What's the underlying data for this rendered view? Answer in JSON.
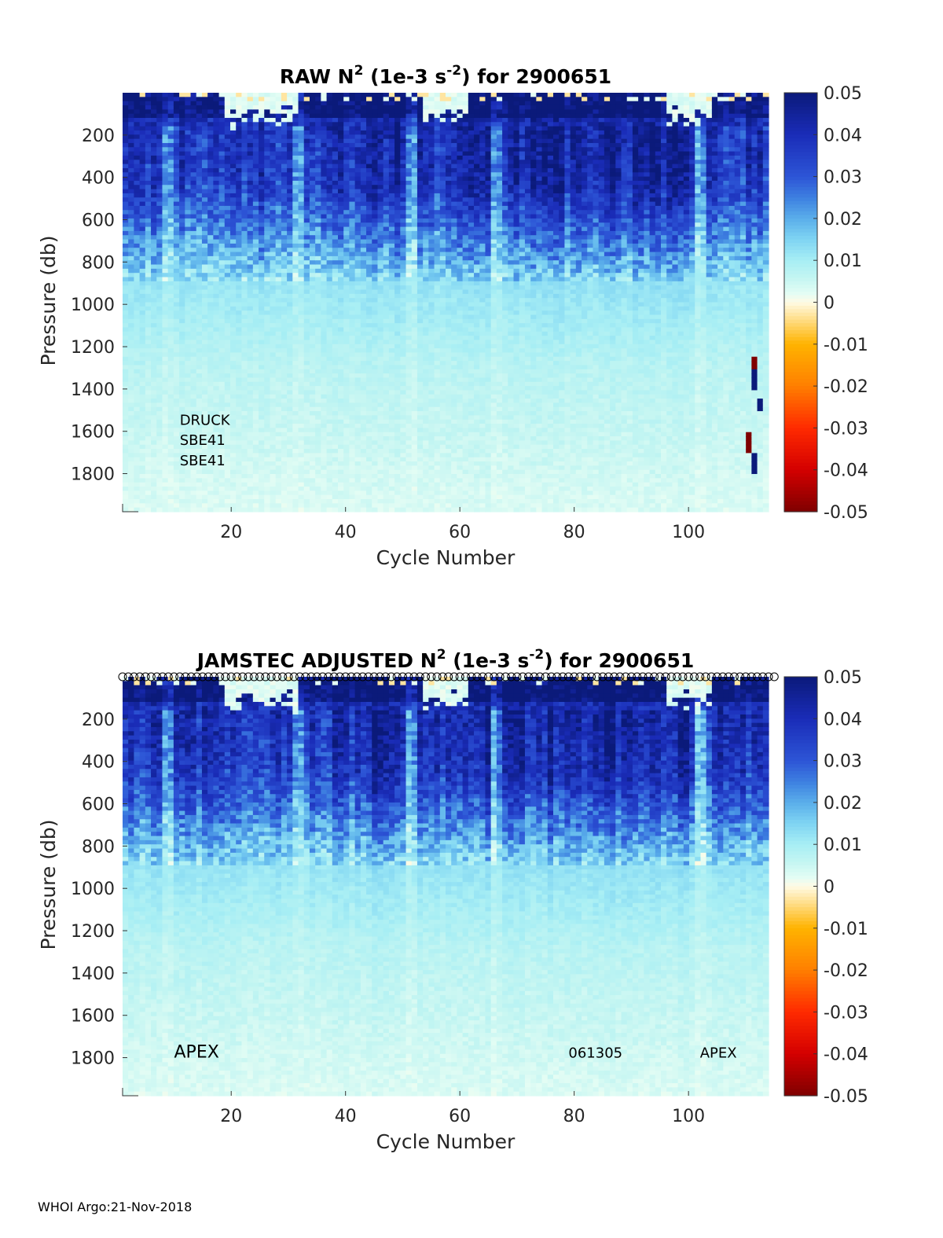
{
  "colormap": {
    "stops": [
      {
        "v": -0.05,
        "c": "#7f0000"
      },
      {
        "v": -0.04,
        "c": "#d40000"
      },
      {
        "v": -0.03,
        "c": "#ff2a00"
      },
      {
        "v": -0.02,
        "c": "#ff7f00"
      },
      {
        "v": -0.01,
        "c": "#ffb300"
      },
      {
        "v": 0.0,
        "c": "#fffbe6"
      },
      {
        "v": 0.002,
        "c": "#e4fdf4"
      },
      {
        "v": 0.006,
        "c": "#c2f5f2"
      },
      {
        "v": 0.01,
        "c": "#a7eef4"
      },
      {
        "v": 0.015,
        "c": "#7fd4f3"
      },
      {
        "v": 0.02,
        "c": "#5aaeea"
      },
      {
        "v": 0.025,
        "c": "#3d7fe0"
      },
      {
        "v": 0.03,
        "c": "#2d55d6"
      },
      {
        "v": 0.04,
        "c": "#1a2cb8"
      },
      {
        "v": 0.05,
        "c": "#0b1a7a"
      }
    ]
  },
  "chart_data": [
    {
      "type": "heatmap",
      "title_prefix": "RAW N",
      "title_sup1": "2",
      "title_mid": " (1e-3 s",
      "title_sup2": "-2",
      "title_suffix": ") for 2900651",
      "xlabel": "Cycle Number",
      "ylabel": "Pressure (db)",
      "xlim": [
        1,
        114
      ],
      "ylim": [
        1980,
        0
      ],
      "xticks": [
        20,
        40,
        60,
        80,
        100
      ],
      "xticklabels": [
        "20",
        "40",
        "60",
        "80",
        "100"
      ],
      "yticks": [
        200,
        400,
        600,
        800,
        1000,
        1200,
        1400,
        1600,
        1800
      ],
      "yticklabels": [
        "200",
        "400",
        "600",
        "800",
        "1000",
        "1200",
        "1400",
        "1600",
        "1800"
      ],
      "colorbar": {
        "range": [
          -0.05,
          0.05
        ],
        "ticks": [
          0.05,
          0.04,
          0.03,
          0.02,
          0.01,
          0,
          -0.01,
          -0.02,
          -0.03,
          -0.04,
          -0.05
        ],
        "ticklabels": [
          "0.05",
          "0.04",
          "0.03",
          "0.02",
          "0.01",
          "0",
          "-0.01",
          "-0.02",
          "-0.03",
          "-0.04",
          "-0.05"
        ]
      },
      "x_cells": 114,
      "z_cells": 100,
      "seed": 1,
      "surface_positive_cycles": [
        {
          "from": 19,
          "to": 23
        },
        {
          "from": 24,
          "to": 31
        },
        {
          "from": 54,
          "to": 61
        },
        {
          "from": 97,
          "to": 104
        }
      ],
      "anomalies": [
        {
          "cycle": 112,
          "p_from": 1250,
          "p_to": 1300,
          "value": -0.05
        },
        {
          "cycle": 112,
          "p_from": 1300,
          "p_to": 1400,
          "value": 0.05
        },
        {
          "cycle": 113,
          "p_from": 1450,
          "p_to": 1500,
          "value": 0.05
        },
        {
          "cycle": 111,
          "p_from": 1600,
          "p_to": 1700,
          "value": -0.05
        },
        {
          "cycle": 112,
          "p_from": 1700,
          "p_to": 1800,
          "value": 0.05
        }
      ],
      "annotations": [
        {
          "text": "DRUCK",
          "x": 11,
          "p": 1570
        },
        {
          "text": "SBE41",
          "x": 11,
          "p": 1665
        },
        {
          "text": "SBE41",
          "x": 11,
          "p": 1760
        }
      ],
      "surface_markers": false
    },
    {
      "type": "heatmap",
      "title_prefix": "JAMSTEC  ADJUSTED N",
      "title_sup1": "2",
      "title_mid": " (1e-3 s",
      "title_sup2": "-2",
      "title_suffix": ") for 2900651",
      "xlabel": "Cycle Number",
      "ylabel": "Pressure (db)",
      "xlim": [
        1,
        114
      ],
      "ylim": [
        1980,
        0
      ],
      "xticks": [
        20,
        40,
        60,
        80,
        100
      ],
      "xticklabels": [
        "20",
        "40",
        "60",
        "80",
        "100"
      ],
      "yticks": [
        200,
        400,
        600,
        800,
        1000,
        1200,
        1400,
        1600,
        1800
      ],
      "yticklabels": [
        "200",
        "400",
        "600",
        "800",
        "1000",
        "1200",
        "1400",
        "1600",
        "1800"
      ],
      "colorbar": {
        "range": [
          -0.05,
          0.05
        ],
        "ticks": [
          0.05,
          0.04,
          0.03,
          0.02,
          0.01,
          0,
          -0.01,
          -0.02,
          -0.03,
          -0.04,
          -0.05
        ],
        "ticklabels": [
          "0.05",
          "0.04",
          "0.03",
          "0.02",
          "0.01",
          "0",
          "-0.01",
          "-0.02",
          "-0.03",
          "-0.04",
          "-0.05"
        ]
      },
      "x_cells": 114,
      "z_cells": 100,
      "seed": 2,
      "surface_positive_cycles": [
        {
          "from": 19,
          "to": 23
        },
        {
          "from": 24,
          "to": 31
        },
        {
          "from": 54,
          "to": 61
        },
        {
          "from": 97,
          "to": 104
        }
      ],
      "anomalies": [],
      "annotations": [
        {
          "text": "APEX",
          "x": 10,
          "p": 1800,
          "size": "large"
        },
        {
          "text": "061305",
          "x": 79,
          "p": 1800
        },
        {
          "text": "APEX",
          "x": 102,
          "p": 1800
        }
      ],
      "surface_markers": true
    }
  ],
  "footer": "WHOI Argo:21-Nov-2018"
}
